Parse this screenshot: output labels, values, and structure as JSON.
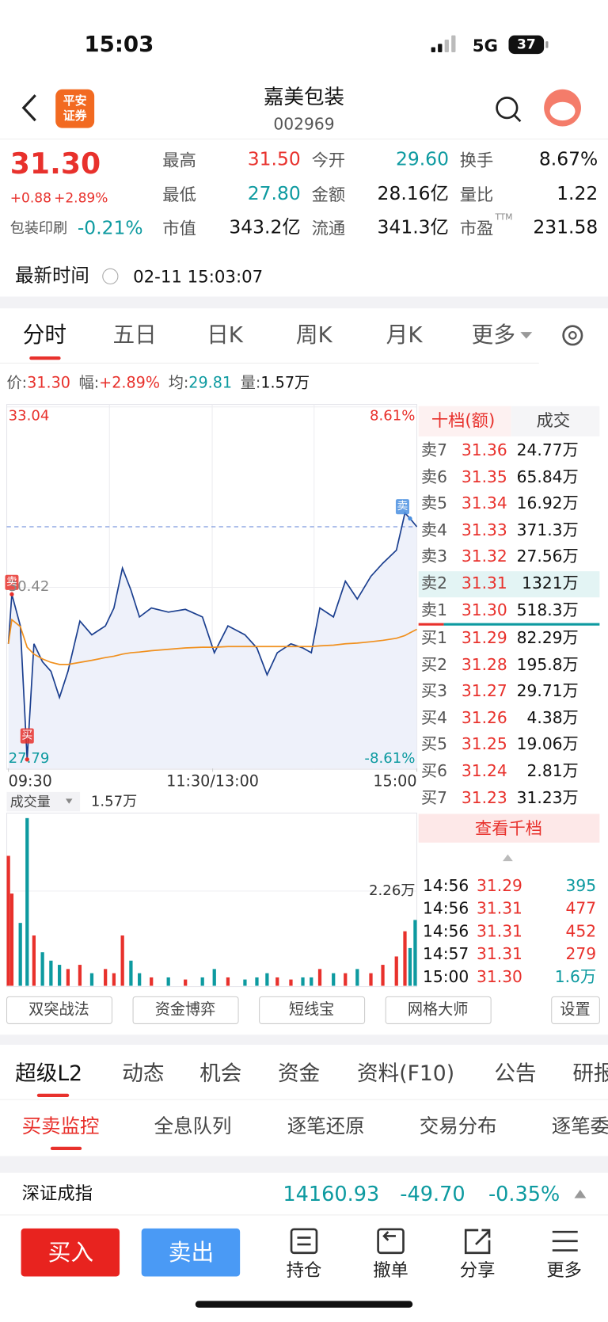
{
  "status_bar": {
    "time": "15:03",
    "network": "5G",
    "battery": "37"
  },
  "header": {
    "logo": [
      "平安",
      "证券"
    ],
    "name": "嘉美包装",
    "code": "002969"
  },
  "quote": {
    "price": "31.30",
    "change": "+0.88",
    "change_pct": "+2.89%",
    "sector": "包装印刷",
    "sector_pct": "-0.21%",
    "stats": [
      [
        {
          "label": "最高",
          "value": "31.50",
          "color": "#e8312c"
        },
        {
          "label": "今开",
          "value": "29.60",
          "color": "#0d9aa0"
        },
        {
          "label": "换手",
          "value": "8.67%",
          "color": "#111111"
        }
      ],
      [
        {
          "label": "最低",
          "value": "27.80",
          "color": "#0d9aa0"
        },
        {
          "label": "金额",
          "value": "28.16亿",
          "color": "#111111"
        },
        {
          "label": "量比",
          "value": "1.22",
          "color": "#111111"
        }
      ],
      [
        {
          "label": "市值",
          "value": "343.2亿",
          "color": "#111111"
        },
        {
          "label": "流通",
          "value": "341.3亿",
          "color": "#111111"
        },
        {
          "label": "市盈",
          "sup": "TTM",
          "value": "231.58",
          "color": "#111111"
        }
      ]
    ]
  },
  "update": {
    "label": "最新时间",
    "value": "02-11 15:03:07"
  },
  "chart_tabs": {
    "items": [
      "分时",
      "五日",
      "日K",
      "周K",
      "月K",
      "更多"
    ],
    "active": 0
  },
  "summary": [
    {
      "label": "价:",
      "value": "31.30",
      "color": "#e8312c"
    },
    {
      "label": "幅:",
      "value": "+2.89%",
      "color": "#e8312c"
    },
    {
      "label": "均:",
      "value": "29.81",
      "color": "#0d9aa0"
    },
    {
      "label": "量:",
      "value": "1.57万",
      "color": "#111111"
    }
  ],
  "chart_data": {
    "type": "line",
    "x": [
      0,
      2,
      7,
      11,
      15,
      20,
      25,
      30,
      35,
      42,
      49,
      57,
      62,
      67,
      72,
      77,
      84,
      94,
      104,
      114,
      121,
      129,
      139,
      146,
      152,
      158,
      166,
      173,
      178,
      183,
      191,
      198,
      205,
      213,
      220,
      228,
      233,
      236,
      240
    ],
    "series": [
      {
        "color": "#1b3f8f",
        "values": [
          29.6,
          30.32,
          29.86,
          27.92,
          29.6,
          29.34,
          29.2,
          28.82,
          29.2,
          29.93,
          29.73,
          29.86,
          30.12,
          30.7,
          30.38,
          29.99,
          30.12,
          30.06,
          30.1,
          29.99,
          29.47,
          29.86,
          29.73,
          29.54,
          29.15,
          29.47,
          29.6,
          29.54,
          29.47,
          30.12,
          29.99,
          30.51,
          30.25,
          30.58,
          30.77,
          30.96,
          31.5,
          31.42,
          31.3
        ]
      },
      {
        "color": "#f0901e",
        "values": [
          29.6,
          29.95,
          29.85,
          29.55,
          29.45,
          29.38,
          29.33,
          29.3,
          29.3,
          29.33,
          29.36,
          29.4,
          29.42,
          29.45,
          29.47,
          29.48,
          29.5,
          29.52,
          29.54,
          29.55,
          29.55,
          29.56,
          29.56,
          29.56,
          29.56,
          29.56,
          29.56,
          29.56,
          29.56,
          29.57,
          29.58,
          29.6,
          29.61,
          29.63,
          29.65,
          29.68,
          29.72,
          29.76,
          29.81
        ]
      }
    ],
    "xlim": [
      0,
      240
    ],
    "xticks": [
      {
        "value": 0,
        "label": "09:30"
      },
      {
        "value": 120,
        "label": "11:30/13:00"
      },
      {
        "value": 240,
        "label": "15:00"
      }
    ],
    "ylim": [
      27.79,
      33.04
    ],
    "yticks": [
      33.04,
      30.42,
      27.79
    ],
    "y2lim": [
      -8.61,
      8.61
    ],
    "y2ticks": [
      {
        "value": 8.61,
        "label": "8.61%"
      },
      {
        "value": -8.61,
        "label": "-8.61%"
      }
    ],
    "annotations": [
      {
        "text": "卖",
        "x": 2,
        "y": 30.32,
        "color": "#e8312c"
      },
      {
        "text": "买",
        "x": 11,
        "y": 27.92,
        "color": "#e8312c"
      },
      {
        "text": "卖",
        "x": 236,
        "y": 31.42,
        "color": "#4a8fe0"
      }
    ]
  },
  "volume_chart": {
    "type": "bar",
    "label": "成交量",
    "value": "1.57万",
    "values": [
      3.1,
      2.2,
      1.5,
      4.0,
      1.2,
      0.8,
      0.6,
      0.5,
      0.4,
      0.5,
      0.3,
      0.4,
      0.3,
      1.2,
      0.6,
      0.3,
      0.2,
      0.2,
      0.15,
      0.2,
      0.4,
      0.2,
      0.15,
      0.2,
      0.3,
      0.2,
      0.15,
      0.2,
      0.2,
      0.4,
      0.3,
      0.3,
      0.4,
      0.3,
      0.5,
      0.7,
      1.3,
      0.9,
      1.57
    ],
    "ylim": [
      0,
      4.1
    ],
    "yticks": [
      {
        "value": 2.26,
        "label": "2.26万"
      }
    ],
    "up_color": "#e8312c",
    "down_color": "#0d9aa0"
  },
  "order_book": {
    "tabs": [
      "十档(额)",
      "成交"
    ],
    "asks": [
      {
        "level": "卖7",
        "price": "31.36",
        "amount": "24.77万"
      },
      {
        "level": "卖6",
        "price": "31.35",
        "amount": "65.84万"
      },
      {
        "level": "卖5",
        "price": "31.34",
        "amount": "16.92万"
      },
      {
        "level": "卖4",
        "price": "31.33",
        "amount": "371.3万"
      },
      {
        "level": "卖3",
        "price": "31.32",
        "amount": "27.56万"
      },
      {
        "level": "卖2",
        "price": "31.31",
        "amount": "1321万"
      },
      {
        "level": "卖1",
        "price": "31.30",
        "amount": "518.3万"
      }
    ],
    "bids": [
      {
        "level": "买1",
        "price": "31.29",
        "amount": "82.29万"
      },
      {
        "level": "买2",
        "price": "31.28",
        "amount": "195.8万"
      },
      {
        "level": "买3",
        "price": "31.27",
        "amount": "29.71万"
      },
      {
        "level": "买4",
        "price": "31.26",
        "amount": "4.38万"
      },
      {
        "level": "买5",
        "price": "31.25",
        "amount": "19.06万"
      },
      {
        "level": "买6",
        "price": "31.24",
        "amount": "2.81万"
      },
      {
        "level": "买7",
        "price": "31.23",
        "amount": "31.23万"
      }
    ],
    "button": "查看千档"
  },
  "trades": [
    {
      "time": "14:56",
      "price": "31.29",
      "volume": "395",
      "color": "#0d9aa0"
    },
    {
      "time": "14:56",
      "price": "31.31",
      "volume": "477",
      "color": "#e8312c"
    },
    {
      "time": "14:56",
      "price": "31.31",
      "volume": "452",
      "color": "#e8312c"
    },
    {
      "time": "14:57",
      "price": "31.31",
      "volume": "279",
      "color": "#e8312c"
    },
    {
      "time": "15:00",
      "price": "31.30",
      "volume": "1.6万",
      "color": "#0d9aa0"
    }
  ],
  "tools": [
    "双突战法",
    "资金博弈",
    "短线宝",
    "网格大师",
    "设置"
  ],
  "detail_tabs": {
    "items": [
      "超级L2",
      "动态",
      "机会",
      "资金",
      "资料(F10)",
      "公告",
      "研报"
    ],
    "active": 0
  },
  "sub_tabs": {
    "items": [
      "买卖监控",
      "全息队列",
      "逐笔还原",
      "交易分布",
      "逐笔委托"
    ],
    "active": 0
  },
  "index": {
    "name": "深证成指",
    "value": "14160.93",
    "change": "-49.70",
    "change_pct": "-0.35%"
  },
  "bottom_bar": {
    "buy": "买入",
    "sell": "卖出",
    "items": [
      "持仓",
      "撤单",
      "分享",
      "更多"
    ]
  }
}
